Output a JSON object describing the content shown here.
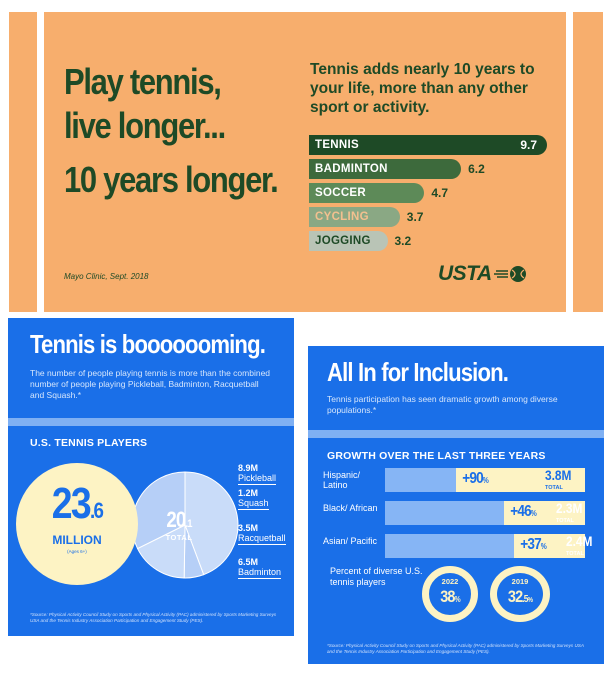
{
  "top": {
    "headline": [
      "Play tennis,",
      "live longer...",
      "10 years longer."
    ],
    "subhead": "Tennis adds nearly 10 years to your life, more than any other sport or activity.",
    "source": "Mayo Clinic, Sept. 2018",
    "logo_text": "USTA",
    "colors": {
      "bg": "#f7ae6d",
      "dark": "#1e4a26"
    }
  },
  "chart_data": {
    "type": "bar",
    "categories": [
      "TENNIS",
      "BADMINTON",
      "SOCCER",
      "CYCLING",
      "JOGGING"
    ],
    "values": [
      9.7,
      6.2,
      4.7,
      3.7,
      3.2
    ],
    "labels": [
      "9.7",
      "6.2",
      "4.7",
      "3.7",
      "3.2"
    ],
    "bar_colors": [
      "#1e4a26",
      "#3d6a3c",
      "#5d8a58",
      "#8aa884",
      "#b9c4b6"
    ],
    "label_colors": [
      "#ffffff",
      "#ffffff",
      "#ffffff",
      "#f3c08f",
      "#1e4a26"
    ],
    "title": "",
    "xlabel": "",
    "ylabel": "",
    "orientation": "horizontal"
  },
  "left_panel": {
    "title": "Tennis is booooooming.",
    "text": "The number of people playing tennis is more than the combined number of people playing Pickleball, Badminton, Racquetball and Squash.",
    "text_mark": "*",
    "section_title": "U.S. TENNIS PLAYERS",
    "big_value": "23",
    "big_decimal": ".6",
    "big_unit": "MILLION",
    "big_note": "(Ages 6+)",
    "total_value": "20",
    "total_decimal": ".1",
    "total_label": "TOTAL",
    "sports": [
      {
        "value": "8.9M",
        "name": "Pickleball",
        "share": 8.9
      },
      {
        "value": "1.2M",
        "name": "Squash",
        "share": 1.2
      },
      {
        "value": "3.5M",
        "name": "Racquetball",
        "share": 3.5
      },
      {
        "value": "6.5M",
        "name": "Badminton",
        "share": 6.5
      }
    ],
    "footnote": "*Source: Physical Activity Council Study on Sports and Physical Activity (PAC) administered by Sports Marketing Surveys USA and the Tennis Industry Association Participation and Engagement Study (PES)."
  },
  "right_panel": {
    "title": "All In for Inclusion.",
    "text": "Tennis participation has seen dramatic growth among diverse populations.",
    "text_mark": "*",
    "section_title": "GROWTH OVER THE LAST THREE YEARS",
    "groups": [
      {
        "label": "Hispanic/ Latino",
        "pct": "+90",
        "pct_sign": "%",
        "total": "3.8M",
        "total_label": "TOTAL",
        "growth": 90
      },
      {
        "label": "Black/ African",
        "pct": "+46",
        "pct_sign": "%",
        "total": "2.3M",
        "total_label": "TOTAL",
        "growth": 46
      },
      {
        "label": "Asian/ Pacific",
        "pct": "+37",
        "pct_sign": "%",
        "total": "2.4M",
        "total_label": "TOTAL",
        "growth": 37
      }
    ],
    "percent_label": "Percent of diverse U.S. tennis players",
    "rings": [
      {
        "year": "2022",
        "value": "38",
        "unit": "%"
      },
      {
        "year": "2019",
        "value": "32",
        "decimal": ".5",
        "unit": "%"
      }
    ],
    "footnote": "*Source: Physical Activity Council Study on Sports and Physical Activity (PAC) administered by Sports Marketing Surveys USA and the Tennis Industry Association Participation and Engagement Study (PES)."
  },
  "colors": {
    "blue": "#1a6fe8",
    "cream": "#fdf3c4",
    "light_blue": "#86b5f5"
  }
}
